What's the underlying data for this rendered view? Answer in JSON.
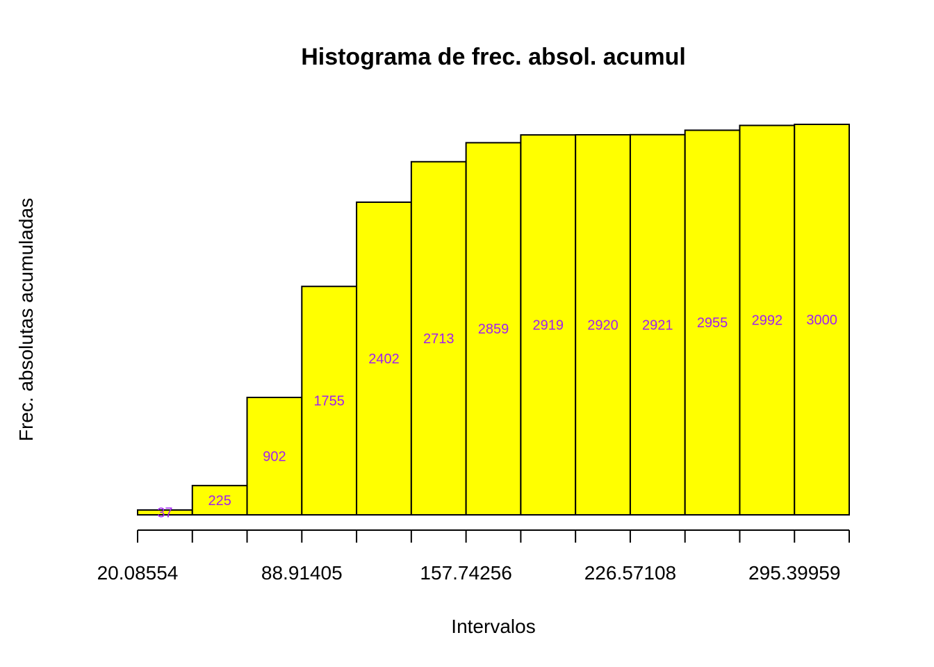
{
  "chart_data": {
    "type": "bar",
    "title": "Histograma de frec. absol. acumul",
    "xlabel": "Intervalos",
    "ylabel": "Frec. absolutas acumuladas",
    "values": [
      37,
      225,
      902,
      1755,
      2402,
      2713,
      2859,
      2919,
      2920,
      2921,
      2955,
      2992,
      3000
    ],
    "x_ticks": [
      "20.08554",
      "88.91405",
      "157.74256",
      "226.57108",
      "295.39959"
    ],
    "x_range": [
      20.08554,
      315.0
    ],
    "ylim": [
      0,
      3000
    ],
    "bar_fill": "#ffff00",
    "bar_stroke": "#000000",
    "label_color": "#a020f0",
    "grid": false,
    "legend": "none"
  }
}
